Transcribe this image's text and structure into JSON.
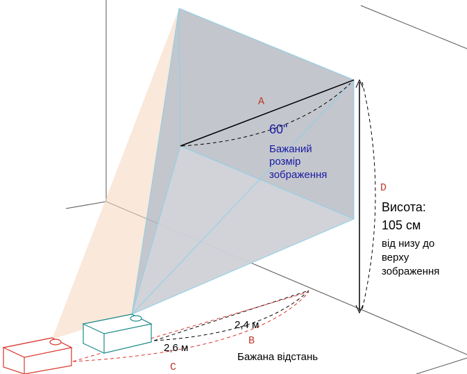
{
  "labels": {
    "a": "A",
    "b": "B",
    "c": "C",
    "d": "D"
  },
  "screen": {
    "size": "60\"",
    "caption": [
      "Бажаний",
      "розмір",
      "зображення"
    ]
  },
  "height": {
    "title": "Висота:",
    "value": "105 см",
    "note": [
      "від низу до",
      "верху",
      "зображення"
    ]
  },
  "distance": {
    "near": "2,4 м",
    "far": "2,6 м",
    "caption": "Бажана відстань"
  }
}
